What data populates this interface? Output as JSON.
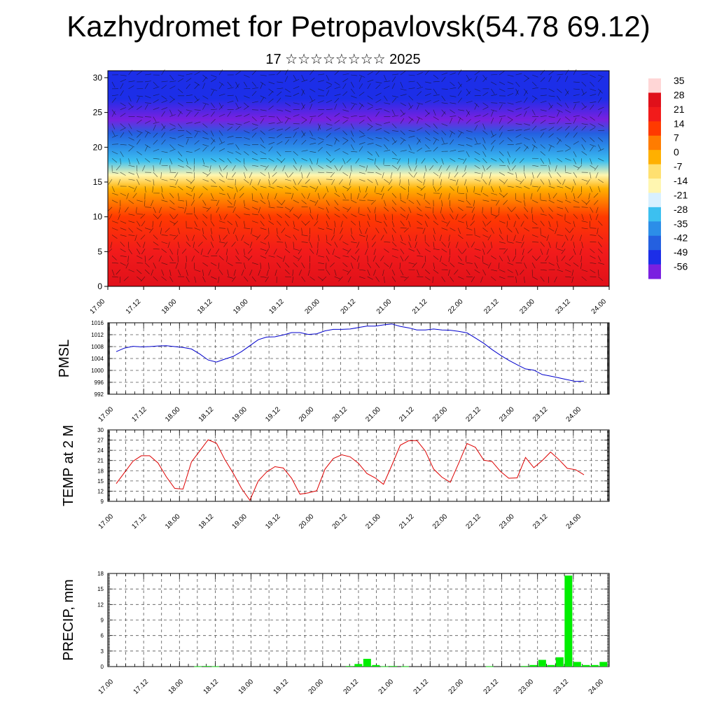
{
  "title": "Kazhydromet for Petropavlovsk(54.78 69.12)",
  "subtitle": "17 ☆☆☆☆☆☆☆☆ 2025",
  "colors": {
    "pmsl_line": "#0000cc",
    "temp_line": "#dd0000",
    "precip_bar": "#00ee00",
    "grid": "#555555"
  },
  "chart_data": [
    {
      "type": "heatmap",
      "name": "cross-section",
      "xlabel": "",
      "ylabel": "",
      "ylim": [
        0,
        31
      ],
      "yticks": [
        0,
        5,
        10,
        15,
        20,
        25,
        30
      ],
      "xticks": [
        "17.00",
        "17.12",
        "18.00",
        "18.12",
        "19.00",
        "19.12",
        "20.00",
        "20.12",
        "21.00",
        "21.12",
        "22.00",
        "22.12",
        "23.00",
        "23.12",
        "24.00"
      ],
      "colorbar": {
        "labels": [
          "35",
          "28",
          "21",
          "14",
          "7",
          "0",
          "-7",
          "-14",
          "-21",
          "-28",
          "-35",
          "-42",
          "-49",
          "-56"
        ],
        "colors": [
          "#ffd6d6",
          "#e0101a",
          "#f21b1b",
          "#ff3a00",
          "#ff7c00",
          "#ffb000",
          "#ffe070",
          "#fff6b0",
          "#d8f0ff",
          "#3cc0f0",
          "#2c8ee8",
          "#2460e0",
          "#1c2ee8",
          "#7a20e0"
        ]
      },
      "vertical_profile": [
        {
          "y": 0,
          "value": 30
        },
        {
          "y": 5,
          "value": 25
        },
        {
          "y": 10,
          "value": 16
        },
        {
          "y": 14,
          "value": 5
        },
        {
          "y": 16,
          "value": -8
        },
        {
          "y": 18,
          "value": -22
        },
        {
          "y": 20,
          "value": -32
        },
        {
          "y": 22,
          "value": -42
        },
        {
          "y": 24,
          "value": -50
        },
        {
          "y": 27,
          "value": -47
        },
        {
          "y": 31,
          "value": -44
        }
      ]
    },
    {
      "type": "line",
      "name": "PMSL",
      "ylabel": "PMSL",
      "ylim": [
        992,
        1016
      ],
      "yticks": [
        992,
        996,
        1000,
        1004,
        1008,
        1012,
        1016
      ],
      "xticks": [
        "17.00",
        "17.12",
        "18.00",
        "18.12",
        "19.00",
        "19.12",
        "20.00",
        "20.12",
        "21.00",
        "21.12",
        "22.00",
        "22.12",
        "23.00",
        "23.12",
        "24.00"
      ],
      "x": [
        0,
        3,
        6,
        9,
        12,
        15,
        18,
        21,
        24,
        27,
        30,
        33,
        36,
        39,
        42,
        45,
        48,
        51,
        54,
        57,
        60,
        63,
        66,
        69,
        72,
        75,
        78,
        81,
        84,
        87,
        90,
        93,
        96,
        99,
        102,
        105,
        108,
        111,
        114,
        117,
        120,
        123,
        126,
        129,
        132,
        135,
        138,
        141,
        144,
        147,
        150,
        153,
        156,
        159,
        162,
        165,
        168
      ],
      "values": [
        1006.3,
        1007.5,
        1008.1,
        1007.9,
        1008.0,
        1008.2,
        1008.3,
        1008.0,
        1007.7,
        1007.2,
        1005.5,
        1003.5,
        1002.8,
        1003.8,
        1004.7,
        1006.3,
        1008.3,
        1010.3,
        1011.2,
        1011.3,
        1011.9,
        1012.7,
        1012.7,
        1012.1,
        1012.3,
        1013.3,
        1013.8,
        1013.8,
        1013.9,
        1014.4,
        1014.9,
        1014.9,
        1015.3,
        1015.6,
        1014.8,
        1014.3,
        1013.6,
        1013.6,
        1013.9,
        1013.6,
        1013.5,
        1013.1,
        1012.6,
        1010.9,
        1009.1,
        1007.0,
        1005.1,
        1003.4,
        1001.9,
        1000.5,
        1000.1,
        998.6,
        998.1,
        997.5,
        996.9,
        996.3,
        996.4
      ]
    },
    {
      "type": "line",
      "name": "TEMP",
      "ylabel": "TEMP at 2 M",
      "ylim": [
        9,
        30
      ],
      "yticks": [
        9,
        12,
        15,
        18,
        21,
        24,
        27,
        30
      ],
      "xticks": [
        "17.00",
        "17.12",
        "18.00",
        "18.12",
        "19.00",
        "19.12",
        "20.00",
        "20.12",
        "21.00",
        "21.12",
        "22.00",
        "22.12",
        "23.00",
        "23.12",
        "24.00"
      ],
      "x": [
        0,
        3,
        6,
        9,
        12,
        15,
        18,
        21,
        24,
        27,
        30,
        33,
        36,
        39,
        42,
        45,
        48,
        51,
        54,
        57,
        60,
        63,
        66,
        69,
        72,
        75,
        78,
        81,
        84,
        87,
        90,
        93,
        96,
        99,
        102,
        105,
        108,
        111,
        114,
        117,
        120,
        123,
        126,
        129,
        132,
        135,
        138,
        141,
        144,
        147,
        150,
        153,
        156,
        159,
        162,
        165,
        168
      ],
      "values": [
        14.2,
        17.5,
        20.8,
        22.4,
        22.4,
        20.3,
        16.2,
        12.8,
        12.6,
        20.6,
        23.8,
        27.1,
        26.1,
        21.3,
        17.3,
        12.8,
        9.3,
        15.0,
        17.6,
        19.2,
        18.8,
        15.8,
        11.1,
        11.5,
        12.1,
        18.5,
        21.6,
        22.7,
        22.1,
        20.2,
        17.2,
        15.9,
        14.0,
        19.6,
        25.5,
        26.8,
        26.9,
        23.8,
        18.5,
        16.1,
        14.6,
        20.2,
        26.0,
        24.9,
        21.1,
        20.7,
        17.8,
        15.8,
        15.9,
        21.9,
        18.9,
        21.0,
        23.5,
        21.3,
        18.7,
        18.3,
        16.8
      ]
    },
    {
      "type": "bar",
      "name": "PRECIP",
      "ylabel": "PRECIP, mm",
      "ylim": [
        0,
        18
      ],
      "yticks": [
        0,
        3,
        6,
        9,
        12,
        15,
        18
      ],
      "xticks": [
        "17.00",
        "17.12",
        "18.00",
        "18.12",
        "19.00",
        "19.12",
        "20.00",
        "20.12",
        "21.00",
        "21.12",
        "22.00",
        "22.12",
        "23.00",
        "23.12",
        "24.00"
      ],
      "x": [
        28,
        31,
        34,
        80,
        83,
        86,
        89,
        92,
        95,
        99,
        128,
        140,
        143,
        146,
        149,
        152,
        155,
        158,
        161,
        164
      ],
      "values": [
        0.05,
        0.1,
        0.05,
        0.1,
        0.5,
        1.5,
        0.3,
        0.05,
        0.1,
        0.05,
        0.05,
        0.1,
        0.3,
        1.3,
        0.3,
        1.8,
        17.6,
        0.9,
        0.3,
        0.3
      ],
      "extra": {
        "x": [
          167
        ],
        "values": [
          0.9
        ]
      }
    }
  ]
}
